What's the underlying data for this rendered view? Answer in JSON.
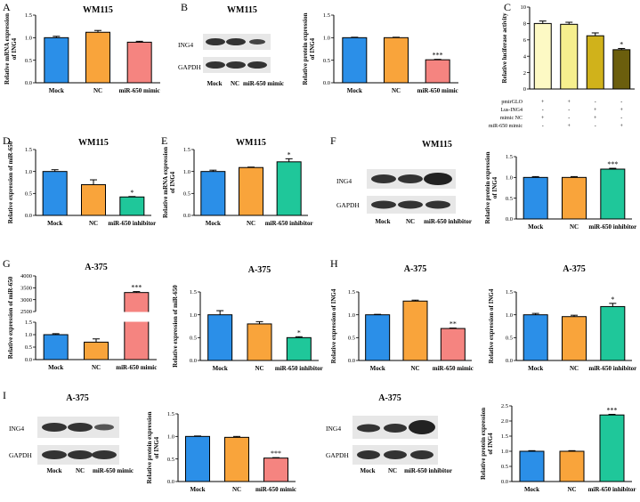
{
  "panel_labels": [
    "A",
    "B",
    "C",
    "D",
    "E",
    "F",
    "G",
    "H",
    "I"
  ],
  "colors": {
    "mock": "#2b8fe8",
    "nc": "#f9a43b",
    "mimic": "#f58480",
    "inhibitor": "#1fc79a",
    "luc1": "#fdf9c4",
    "luc2": "#f6ef8e",
    "luc3": "#d0b21b",
    "luc4": "#6b5e0d",
    "band": "#3a3a3a"
  },
  "blots": [
    {
      "id": "blotB",
      "title": "WM115",
      "rows": [
        "ING4",
        "GAPDH"
      ],
      "lanes": [
        "Mock",
        "NC",
        "miR-650 mimic"
      ]
    },
    {
      "id": "blotF",
      "title": "WM115",
      "rows": [
        "ING4",
        "GAPDH"
      ],
      "lanes": [
        "Mock",
        "NC",
        "miR-650 inhibitor"
      ]
    },
    {
      "id": "blotI1",
      "title": "A-375",
      "rows": [
        "ING4",
        "GAPDH"
      ],
      "lanes": [
        "Mock",
        "NC",
        "miR-650 mimic"
      ]
    },
    {
      "id": "blotI2",
      "title": "A-375",
      "rows": [
        "ING4",
        "GAPDH"
      ],
      "lanes": [
        "Mock",
        "NC",
        "miR-650 inhibitor"
      ]
    }
  ],
  "luciferase_table": {
    "rows": [
      {
        "label": "pmirGLO",
        "marks": [
          "+",
          "+",
          "-",
          "-"
        ]
      },
      {
        "label": "Lus-ING4",
        "marks": [
          "-",
          "-",
          "+",
          "+"
        ]
      },
      {
        "label": "mimic NC",
        "marks": [
          "+",
          "-",
          "+",
          "-"
        ]
      },
      {
        "label": "miR-650 mimic",
        "marks": [
          "-",
          "+",
          "-",
          "+"
        ]
      }
    ]
  },
  "chart_data": [
    {
      "id": "A",
      "type": "bar",
      "title": "WM115",
      "ylabel": [
        "Relative mRNA expression",
        "of ING4"
      ],
      "categories": [
        "Mock",
        "NC",
        "miR-650 mimic"
      ],
      "values": [
        1.0,
        1.12,
        0.9
      ],
      "errors": [
        0.03,
        0.04,
        0.02
      ],
      "ylim": [
        0,
        1.5
      ],
      "ticks": [
        "0.0",
        "0.5",
        "1.0",
        "1.5"
      ],
      "sig": [
        "",
        "",
        ""
      ]
    },
    {
      "id": "B",
      "type": "bar",
      "title": "",
      "ylabel": [
        "Relative protein expression",
        "of ING4"
      ],
      "categories": [
        "Mock",
        "NC",
        "miR-650 mimic"
      ],
      "values": [
        1.0,
        1.0,
        0.51
      ],
      "errors": [
        0.01,
        0.01,
        0.01
      ],
      "ylim": [
        0,
        1.5
      ],
      "ticks": [
        "0.0",
        "0.5",
        "1.0",
        "1.5"
      ],
      "sig": [
        "",
        "",
        "***"
      ]
    },
    {
      "id": "C",
      "type": "bar",
      "title": "",
      "ylabel": [
        "Relative luciferase activity"
      ],
      "categories": [
        "",
        "",
        "",
        ""
      ],
      "values": [
        8.0,
        7.9,
        6.5,
        4.8
      ],
      "errors": [
        0.3,
        0.25,
        0.35,
        0.15
      ],
      "ylim": [
        0,
        10
      ],
      "ticks": [
        "0",
        "2",
        "4",
        "6",
        "8",
        "10"
      ],
      "sig": [
        "",
        "",
        "",
        "*"
      ]
    },
    {
      "id": "D",
      "type": "bar",
      "title": "WM115",
      "ylabel": [
        "Relative expression of miR-650"
      ],
      "categories": [
        "Mock",
        "NC",
        "miR-650 inhibitor"
      ],
      "values": [
        1.0,
        0.7,
        0.42
      ],
      "errors": [
        0.04,
        0.11,
        0.01
      ],
      "ylim": [
        0,
        1.5
      ],
      "ticks": [
        "0.0",
        "0.5",
        "1.0",
        "1.5"
      ],
      "sig": [
        "",
        "",
        "*"
      ]
    },
    {
      "id": "E",
      "type": "bar",
      "title": "WM115",
      "ylabel": [
        "Relative mRNA expression",
        "of ING4"
      ],
      "categories": [
        "Mock",
        "NC",
        "miR-650 inhibitor"
      ],
      "values": [
        1.0,
        1.09,
        1.22
      ],
      "errors": [
        0.03,
        0.01,
        0.07
      ],
      "ylim": [
        0,
        1.5
      ],
      "ticks": [
        "0.0",
        "0.5",
        "1.0",
        "1.5"
      ],
      "sig": [
        "",
        "",
        "*"
      ]
    },
    {
      "id": "F",
      "type": "bar",
      "title": "",
      "ylabel": [
        "Relative protein expression",
        "of ING4"
      ],
      "categories": [
        "Mock",
        "NC",
        "miR-650 inhibitor"
      ],
      "values": [
        1.0,
        1.0,
        1.2
      ],
      "errors": [
        0.02,
        0.02,
        0.02
      ],
      "ylim": [
        0,
        1.5
      ],
      "ticks": [
        "0.0",
        "0.5",
        "1.0",
        "1.5"
      ],
      "sig": [
        "",
        "",
        "***"
      ]
    },
    {
      "id": "G1",
      "type": "bar",
      "title": "A-375",
      "ylabel": [
        "Relative expression of miR-650"
      ],
      "categories": [
        "Mock",
        "NC",
        "miR-650 mimic"
      ],
      "values": [
        1.0,
        0.7,
        3300
      ],
      "errors": [
        0.04,
        0.13,
        40
      ],
      "ylim": [
        0,
        4000
      ],
      "broken_axis": {
        "lower": [
          0,
          1.5
        ],
        "upper": [
          2500,
          4000
        ]
      },
      "ticks": [
        "0.0",
        "0.5",
        "1.0",
        "1.5",
        "2500",
        "3000",
        "3500",
        "4000"
      ],
      "sig": [
        "",
        "",
        "***"
      ]
    },
    {
      "id": "G2",
      "type": "bar",
      "title": "A-375",
      "ylabel": [
        "Relative expression of miR-650"
      ],
      "categories": [
        "Mock",
        "NC",
        "miR-650 inhibitor"
      ],
      "values": [
        1.0,
        0.8,
        0.5
      ],
      "errors": [
        0.09,
        0.05,
        0.02
      ],
      "ylim": [
        0,
        1.5
      ],
      "ticks": [
        "0.0",
        "0.5",
        "1.0",
        "1.5"
      ],
      "sig": [
        "",
        "",
        "*"
      ]
    },
    {
      "id": "H1",
      "type": "bar",
      "title": "A-375",
      "ylabel": [
        "Relative expression of ING4"
      ],
      "categories": [
        "Mock",
        "NC",
        "miR-650 mimic"
      ],
      "values": [
        1.0,
        1.3,
        0.7
      ],
      "errors": [
        0.01,
        0.02,
        0.01
      ],
      "ylim": [
        0,
        1.5
      ],
      "ticks": [
        "0.0",
        "0.5",
        "1.0",
        "1.5"
      ],
      "sig": [
        "",
        "",
        "**"
      ]
    },
    {
      "id": "H2",
      "type": "bar",
      "title": "A-375",
      "ylabel": [
        "Relative expression of ING4"
      ],
      "categories": [
        "Mock",
        "NC",
        "miR-650 inhibitor"
      ],
      "values": [
        1.0,
        0.96,
        1.18
      ],
      "errors": [
        0.03,
        0.03,
        0.07
      ],
      "ylim": [
        0,
        1.5
      ],
      "ticks": [
        "0.0",
        "0.5",
        "1.0",
        "1.5"
      ],
      "sig": [
        "",
        "",
        "*"
      ]
    },
    {
      "id": "I1",
      "type": "bar",
      "title": "",
      "ylabel": [
        "Relative protein expression",
        "of ING4"
      ],
      "categories": [
        "Mock",
        "NC",
        "miR-650 mimic"
      ],
      "values": [
        1.0,
        0.98,
        0.52
      ],
      "errors": [
        0.01,
        0.02,
        0.01
      ],
      "ylim": [
        0,
        1.5
      ],
      "ticks": [
        "0.0",
        "0.5",
        "1.0",
        "1.5"
      ],
      "sig": [
        "",
        "",
        "***"
      ]
    },
    {
      "id": "I2",
      "type": "bar",
      "title": "",
      "ylabel": [
        "Relative protein expression",
        "of ING4"
      ],
      "categories": [
        "Mock",
        "NC",
        "miR-650 inhibitor"
      ],
      "values": [
        1.0,
        1.0,
        2.2
      ],
      "errors": [
        0.02,
        0.02,
        0.02
      ],
      "ylim": [
        0,
        2.5
      ],
      "ticks": [
        "0.0",
        "0.5",
        "1.0",
        "1.5",
        "2.0",
        "2.5"
      ],
      "sig": [
        "",
        "",
        "***"
      ]
    }
  ]
}
